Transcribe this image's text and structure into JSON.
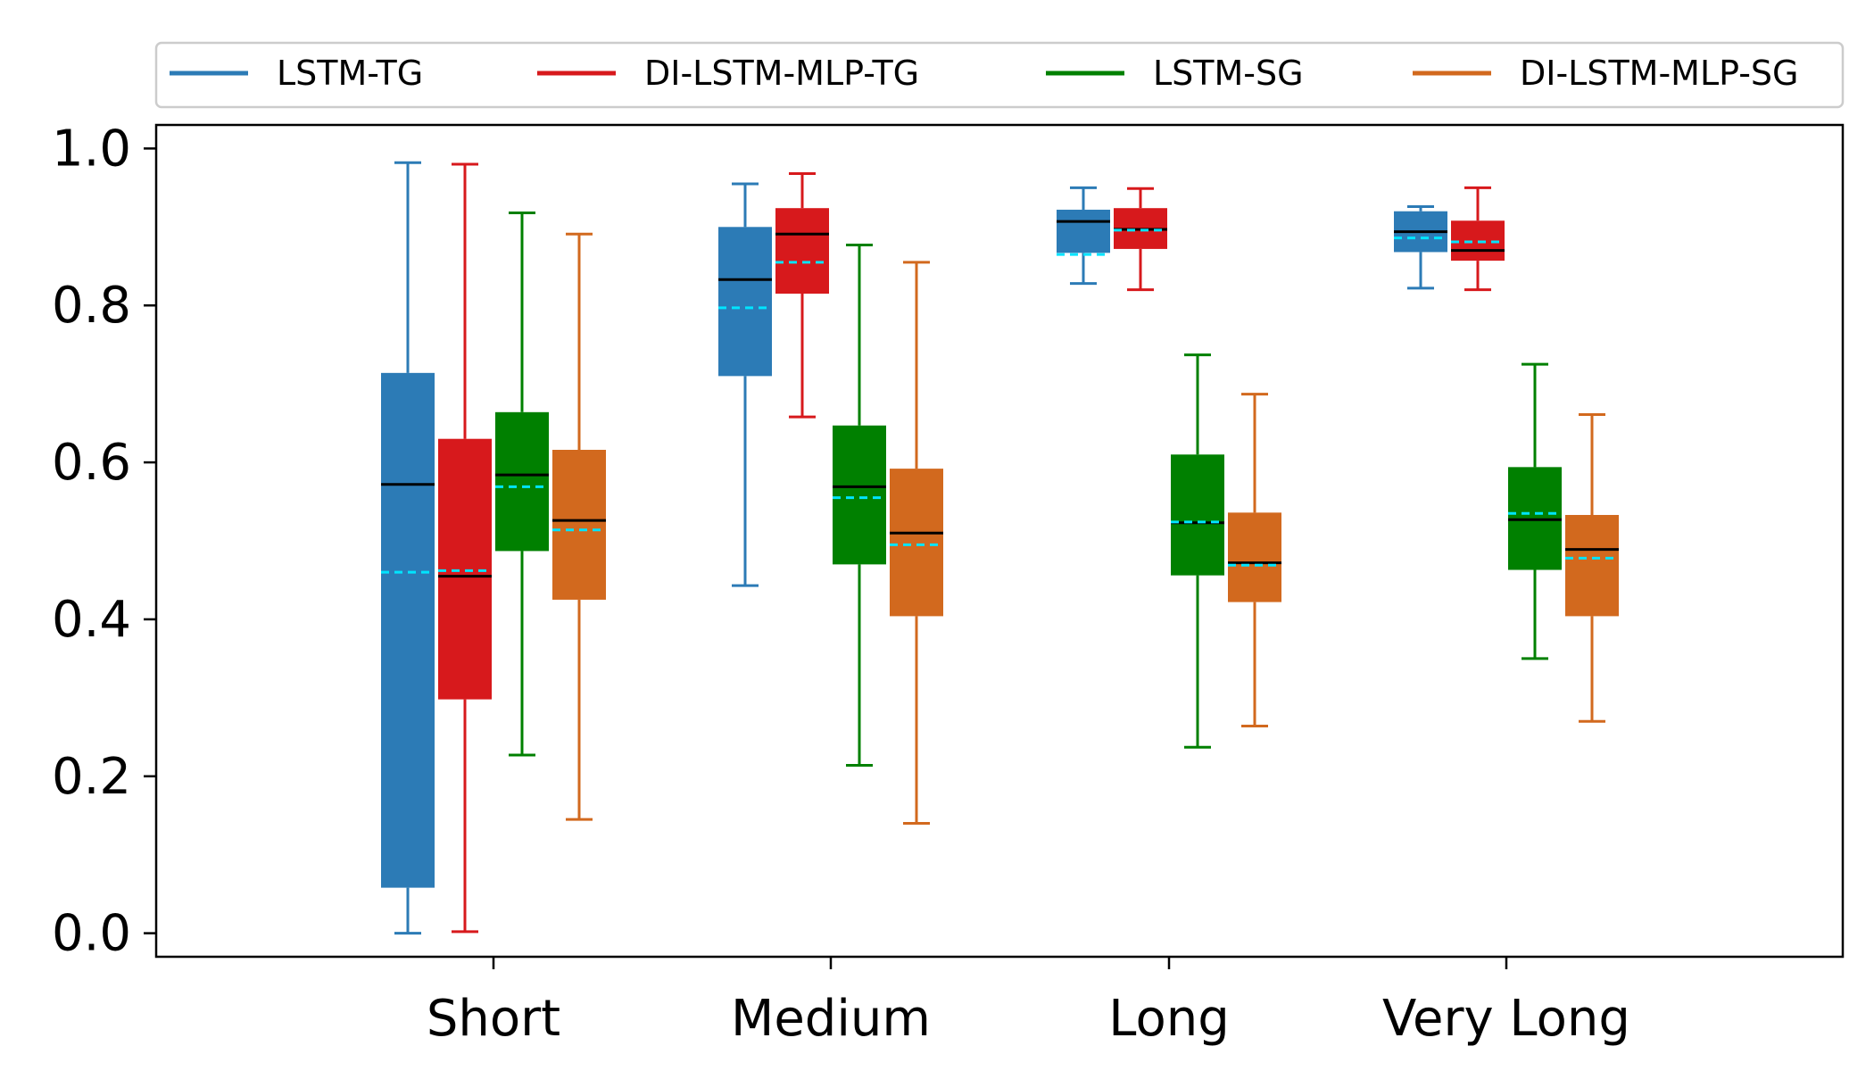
{
  "chart_data": {
    "type": "box",
    "categories": [
      "Short",
      "Medium",
      "Long",
      "Very Long"
    ],
    "ylim": [
      -0.03,
      1.03
    ],
    "yticks": [
      "0.0",
      "0.2",
      "0.4",
      "0.6",
      "0.8",
      "1.0"
    ],
    "ytick_values": [
      0.0,
      0.2,
      0.4,
      0.6,
      0.8,
      1.0
    ],
    "grid": false,
    "legend_position": "top",
    "median_color": "#000000",
    "mean_color": "#00e5ff",
    "series": [
      {
        "name": "LSTM-TG",
        "color": "#2c7bb6",
        "boxes": [
          {
            "whisker_low": 0.0,
            "q1": 0.058,
            "median": 0.572,
            "mean": 0.46,
            "q3": 0.714,
            "whisker_high": 0.982
          },
          {
            "whisker_low": 0.443,
            "q1": 0.71,
            "median": 0.833,
            "mean": 0.797,
            "q3": 0.9,
            "whisker_high": 0.955
          },
          {
            "whisker_low": 0.828,
            "q1": 0.867,
            "median": 0.907,
            "mean": 0.865,
            "q3": 0.922,
            "whisker_high": 0.95
          },
          {
            "whisker_low": 0.822,
            "q1": 0.868,
            "median": 0.894,
            "mean": 0.886,
            "q3": 0.92,
            "whisker_high": 0.926
          }
        ]
      },
      {
        "name": "DI-LSTM-MLP-TG",
        "color": "#d7191c",
        "boxes": [
          {
            "whisker_low": 0.002,
            "q1": 0.298,
            "median": 0.455,
            "mean": 0.462,
            "q3": 0.63,
            "whisker_high": 0.98
          },
          {
            "whisker_low": 0.658,
            "q1": 0.815,
            "median": 0.891,
            "mean": 0.855,
            "q3": 0.924,
            "whisker_high": 0.968
          },
          {
            "whisker_low": 0.82,
            "q1": 0.872,
            "median": 0.897,
            "mean": 0.896,
            "q3": 0.924,
            "whisker_high": 0.949
          },
          {
            "whisker_low": 0.82,
            "q1": 0.857,
            "median": 0.87,
            "mean": 0.881,
            "q3": 0.908,
            "whisker_high": 0.95
          }
        ]
      },
      {
        "name": "LSTM-SG",
        "color": "#008000",
        "boxes": [
          {
            "whisker_low": 0.227,
            "q1": 0.487,
            "median": 0.584,
            "mean": 0.569,
            "q3": 0.664,
            "whisker_high": 0.918
          },
          {
            "whisker_low": 0.214,
            "q1": 0.47,
            "median": 0.569,
            "mean": 0.555,
            "q3": 0.647,
            "whisker_high": 0.877
          },
          {
            "whisker_low": 0.237,
            "q1": 0.456,
            "median": 0.523,
            "mean": 0.524,
            "q3": 0.61,
            "whisker_high": 0.737
          },
          {
            "whisker_low": 0.35,
            "q1": 0.463,
            "median": 0.527,
            "mean": 0.535,
            "q3": 0.594,
            "whisker_high": 0.725
          }
        ]
      },
      {
        "name": "DI-LSTM-MLP-SG",
        "color": "#d2691e",
        "boxes": [
          {
            "whisker_low": 0.145,
            "q1": 0.425,
            "median": 0.526,
            "mean": 0.514,
            "q3": 0.616,
            "whisker_high": 0.891
          },
          {
            "whisker_low": 0.14,
            "q1": 0.404,
            "median": 0.51,
            "mean": 0.495,
            "q3": 0.592,
            "whisker_high": 0.855
          },
          {
            "whisker_low": 0.264,
            "q1": 0.422,
            "median": 0.472,
            "mean": 0.469,
            "q3": 0.536,
            "whisker_high": 0.687
          },
          {
            "whisker_low": 0.27,
            "q1": 0.404,
            "median": 0.489,
            "mean": 0.478,
            "q3": 0.533,
            "whisker_high": 0.661
          }
        ]
      }
    ]
  }
}
